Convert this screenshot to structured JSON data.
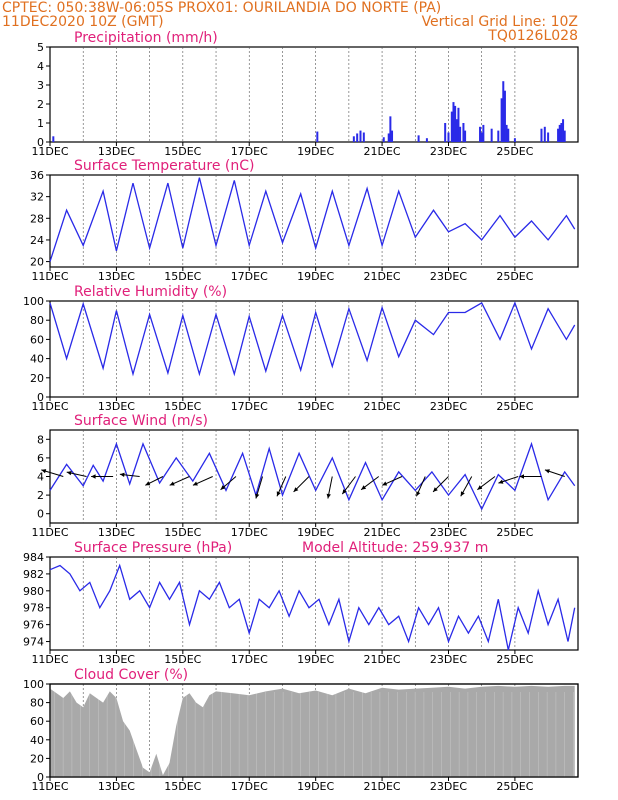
{
  "header": {
    "line1_left": "CPTEC:   050:38W-06:05S   PROX01: OURILANDIA DO NORTE (PA)",
    "line2_left": "11DEC2020 10Z (GMT)",
    "line2_right": "Vertical Grid Line: 10Z",
    "line3_right": "TQ0126L028"
  },
  "colors": {
    "header": "#e07020",
    "panel_title": "#e0207a",
    "series": "#2a2ae8",
    "cloud": "#a9a9a9",
    "wind_arrow": "#000000"
  },
  "x_ticks": [
    "11DEC",
    "13DEC",
    "15DEC",
    "17DEC",
    "19DEC",
    "21DEC",
    "23DEC",
    "25DEC"
  ],
  "chart_data": [
    {
      "type": "bar",
      "title": "Precipitation (mm/h)",
      "ylim": [
        0,
        5
      ],
      "yticks": [
        0,
        1,
        2,
        3,
        4,
        5
      ],
      "events": [
        {
          "t": 0.1,
          "v": 0.3
        },
        {
          "t": 8.05,
          "v": 0.55
        },
        {
          "t": 9.15,
          "v": 0.3
        },
        {
          "t": 9.25,
          "v": 0.45
        },
        {
          "t": 9.35,
          "v": 0.6
        },
        {
          "t": 9.45,
          "v": 0.5
        },
        {
          "t": 10.05,
          "v": 0.25
        },
        {
          "t": 10.2,
          "v": 0.45
        },
        {
          "t": 10.25,
          "v": 1.35
        },
        {
          "t": 10.3,
          "v": 0.6
        },
        {
          "t": 11.1,
          "v": 0.35
        },
        {
          "t": 11.35,
          "v": 0.2
        },
        {
          "t": 11.9,
          "v": 1.0
        },
        {
          "t": 12.0,
          "v": 0.5
        },
        {
          "t": 12.1,
          "v": 1.6
        },
        {
          "t": 12.15,
          "v": 2.1
        },
        {
          "t": 12.2,
          "v": 1.9
        },
        {
          "t": 12.25,
          "v": 1.2
        },
        {
          "t": 12.3,
          "v": 1.8
        },
        {
          "t": 12.35,
          "v": 0.8
        },
        {
          "t": 12.45,
          "v": 1.0
        },
        {
          "t": 12.5,
          "v": 0.6
        },
        {
          "t": 12.95,
          "v": 0.8
        },
        {
          "t": 13.0,
          "v": 0.5
        },
        {
          "t": 13.05,
          "v": 0.9
        },
        {
          "t": 13.3,
          "v": 0.7
        },
        {
          "t": 13.5,
          "v": 0.6
        },
        {
          "t": 13.6,
          "v": 2.3
        },
        {
          "t": 13.65,
          "v": 3.2
        },
        {
          "t": 13.7,
          "v": 2.7
        },
        {
          "t": 13.75,
          "v": 0.9
        },
        {
          "t": 13.8,
          "v": 0.7
        },
        {
          "t": 14.0,
          "v": 0.2
        },
        {
          "t": 14.8,
          "v": 0.7
        },
        {
          "t": 14.9,
          "v": 0.8
        },
        {
          "t": 15.0,
          "v": 0.5
        },
        {
          "t": 15.3,
          "v": 0.7
        },
        {
          "t": 15.35,
          "v": 0.9
        },
        {
          "t": 15.4,
          "v": 1.0
        },
        {
          "t": 15.45,
          "v": 1.2
        },
        {
          "t": 15.5,
          "v": 0.6
        }
      ]
    },
    {
      "type": "line",
      "title": "Surface Temperature (nC)",
      "ylim": [
        19,
        36
      ],
      "yticks": [
        20,
        24,
        28,
        32,
        36
      ],
      "x": [
        0,
        0.5,
        1.0,
        1.6,
        2.0,
        2.5,
        3.0,
        3.55,
        4.0,
        4.5,
        5.0,
        5.55,
        6.0,
        6.5,
        7.0,
        7.55,
        8.0,
        8.5,
        9.0,
        9.55,
        10.0,
        10.5,
        11.0,
        11.55,
        12.0,
        12.5,
        13.0,
        13.55,
        14.0,
        14.5,
        15.0,
        15.55,
        15.8
      ],
      "values": [
        20,
        29.5,
        23,
        33,
        22,
        34.5,
        22.5,
        34.5,
        22.5,
        35.5,
        23,
        35,
        23,
        33,
        23.5,
        32.5,
        22.5,
        33,
        23,
        33.5,
        23,
        33,
        24.5,
        29.5,
        25.5,
        27,
        24,
        28.5,
        24.5,
        27.5,
        24,
        28.5,
        26
      ]
    },
    {
      "type": "line",
      "title": "Relative Humidity (%)",
      "ylim": [
        0,
        100
      ],
      "yticks": [
        0,
        20,
        40,
        60,
        80,
        100
      ],
      "x": [
        0,
        0.5,
        1.0,
        1.6,
        2.0,
        2.5,
        3.0,
        3.55,
        4.0,
        4.5,
        5.0,
        5.55,
        6.0,
        6.5,
        7.0,
        7.55,
        8.0,
        8.5,
        9.0,
        9.55,
        10.0,
        10.5,
        11.0,
        11.55,
        12.0,
        12.5,
        13.0,
        13.55,
        14.0,
        14.5,
        15.0,
        15.55,
        15.8
      ],
      "values": [
        98,
        40,
        97,
        30,
        90,
        24,
        86,
        25,
        85,
        24,
        86,
        24,
        84,
        27,
        85,
        28,
        88,
        32,
        92,
        38,
        93,
        42,
        80,
        65,
        88,
        88,
        98,
        60,
        98,
        50,
        92,
        60,
        75
      ]
    },
    {
      "type": "line",
      "title": "Surface Wind (m/s)",
      "ylim": [
        -1,
        9
      ],
      "yticks": [
        0,
        2,
        4,
        6,
        8
      ],
      "x": [
        0,
        0.5,
        1.0,
        1.3,
        1.6,
        2.0,
        2.4,
        2.8,
        3.3,
        3.8,
        4.3,
        4.8,
        5.3,
        5.8,
        6.2,
        6.6,
        7.0,
        7.5,
        8.0,
        8.5,
        9.0,
        9.5,
        10.0,
        10.5,
        11.0,
        11.5,
        12.0,
        12.5,
        13.0,
        13.5,
        14.0,
        14.5,
        15.0,
        15.5,
        15.8
      ],
      "values": [
        2.5,
        5.3,
        3.0,
        5.2,
        3.5,
        7.5,
        3.2,
        7.5,
        3.3,
        6.0,
        3.5,
        6.5,
        2.5,
        6.5,
        2.0,
        7.0,
        2.0,
        6.5,
        2.5,
        6.0,
        1.5,
        5.5,
        1.5,
        4.5,
        2.5,
        4.5,
        2.0,
        4.2,
        0.5,
        4.2,
        2.5,
        7.5,
        1.5,
        4.5,
        3.0
      ],
      "vectors": [
        {
          "t": 0.4,
          "dx": -1.0,
          "dy": 0.3
        },
        {
          "t": 1.1,
          "dx": -0.9,
          "dy": 0.2
        },
        {
          "t": 1.9,
          "dx": -1.0,
          "dy": 0.0
        },
        {
          "t": 2.7,
          "dx": -0.9,
          "dy": 0.1
        },
        {
          "t": 3.4,
          "dx": -0.8,
          "dy": -0.4
        },
        {
          "t": 4.2,
          "dx": -0.9,
          "dy": -0.4
        },
        {
          "t": 4.9,
          "dx": -0.9,
          "dy": -0.4
        },
        {
          "t": 5.6,
          "dx": -0.7,
          "dy": -0.6
        },
        {
          "t": 6.4,
          "dx": -0.3,
          "dy": -1.0
        },
        {
          "t": 7.1,
          "dx": -0.4,
          "dy": -0.9
        },
        {
          "t": 7.8,
          "dx": -0.7,
          "dy": -0.7
        },
        {
          "t": 8.5,
          "dx": -0.2,
          "dy": -1.0
        },
        {
          "t": 9.2,
          "dx": -0.6,
          "dy": -0.8
        },
        {
          "t": 9.9,
          "dx": -0.8,
          "dy": -0.6
        },
        {
          "t": 10.6,
          "dx": -0.9,
          "dy": -0.4
        },
        {
          "t": 11.3,
          "dx": -0.4,
          "dy": -0.9
        },
        {
          "t": 12.0,
          "dx": -0.7,
          "dy": -0.7
        },
        {
          "t": 12.7,
          "dx": -0.5,
          "dy": -0.9
        },
        {
          "t": 13.4,
          "dx": -0.8,
          "dy": -0.6
        },
        {
          "t": 14.1,
          "dx": -0.9,
          "dy": -0.3
        },
        {
          "t": 14.8,
          "dx": -1.0,
          "dy": 0.0
        },
        {
          "t": 15.5,
          "dx": -0.9,
          "dy": 0.3
        }
      ]
    },
    {
      "type": "line",
      "title": "Surface Pressure (hPa)",
      "annotation": "Model Altitude: 259.937 m",
      "ylim": [
        973,
        984
      ],
      "yticks": [
        974,
        976,
        978,
        980,
        982,
        984
      ],
      "x": [
        0,
        0.3,
        0.6,
        0.9,
        1.2,
        1.5,
        1.8,
        2.1,
        2.4,
        2.7,
        3.0,
        3.3,
        3.6,
        3.9,
        4.2,
        4.5,
        4.8,
        5.1,
        5.4,
        5.7,
        6.0,
        6.3,
        6.6,
        6.9,
        7.2,
        7.5,
        7.8,
        8.1,
        8.4,
        8.7,
        9.0,
        9.3,
        9.6,
        9.9,
        10.2,
        10.5,
        10.8,
        11.1,
        11.4,
        11.7,
        12.0,
        12.3,
        12.6,
        12.9,
        13.2,
        13.5,
        13.8,
        14.1,
        14.4,
        14.7,
        15.0,
        15.3,
        15.6,
        15.8
      ],
      "values": [
        982.5,
        983,
        982,
        980,
        981,
        978,
        980,
        983,
        979,
        980,
        978,
        981,
        979,
        981,
        976,
        980,
        979,
        981,
        978,
        979,
        975,
        979,
        978,
        980,
        977,
        980,
        978,
        979,
        976,
        979,
        974,
        978,
        976,
        978,
        976,
        977,
        974,
        978,
        976,
        978,
        974,
        977,
        975,
        977,
        974,
        979,
        973,
        978,
        975,
        980,
        976,
        979,
        974,
        978
      ]
    },
    {
      "type": "area",
      "title": "Cloud Cover (%)",
      "ylim": [
        0,
        100
      ],
      "yticks": [
        0,
        20,
        40,
        60,
        80,
        100
      ],
      "x": [
        0,
        0.2,
        0.4,
        0.6,
        0.8,
        1.0,
        1.2,
        1.4,
        1.6,
        1.8,
        2.0,
        2.2,
        2.4,
        2.6,
        2.8,
        3.0,
        3.2,
        3.4,
        3.6,
        3.8,
        4.0,
        4.2,
        4.4,
        4.6,
        4.8,
        5.0,
        5.5,
        6.0,
        6.5,
        7.0,
        7.5,
        8.0,
        8.5,
        9.0,
        9.5,
        10.0,
        10.5,
        11.0,
        11.5,
        12.0,
        12.5,
        13.0,
        13.5,
        14.0,
        14.5,
        15.0,
        15.5,
        15.8
      ],
      "values": [
        95,
        90,
        85,
        92,
        80,
        75,
        90,
        85,
        80,
        92,
        85,
        60,
        50,
        30,
        10,
        5,
        25,
        2,
        15,
        55,
        85,
        90,
        80,
        75,
        88,
        92,
        90,
        88,
        92,
        95,
        90,
        93,
        88,
        95,
        90,
        96,
        94,
        95,
        96,
        97,
        95,
        97,
        98,
        97,
        98,
        97,
        98,
        98
      ]
    }
  ]
}
